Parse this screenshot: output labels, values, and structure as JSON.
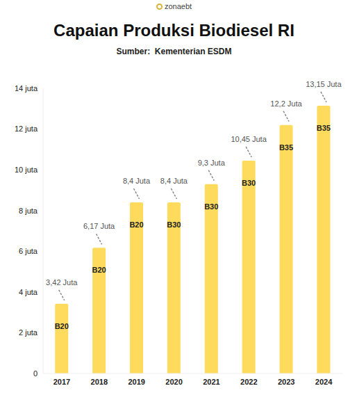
{
  "logo_text": "zonaebt",
  "chart_data": {
    "type": "bar",
    "title": "Capaian Produksi Biodiesel RI",
    "subtitle": "Sumber:  Kementerian ESDM",
    "categories": [
      "2017",
      "2018",
      "2019",
      "2020",
      "2021",
      "2022",
      "2023",
      "2024"
    ],
    "values": [
      3.42,
      6.17,
      8.4,
      8.4,
      9.3,
      10.45,
      12.2,
      13.15
    ],
    "value_labels": [
      "3,42 Juta",
      "6,17 Juta",
      "8,4 Juta",
      "8,4 Juta",
      "9,3 Juta",
      "10,45 Juta",
      "12,2 Juta",
      "13,15 Juta"
    ],
    "bar_labels": [
      "B20",
      "B20",
      "B20",
      "B30",
      "B30",
      "B30",
      "B35",
      "B35"
    ],
    "color": "#fedb5c",
    "ylim": [
      0,
      14
    ],
    "yticks": [
      0,
      {
        "value": 2,
        "label": "2 juta"
      },
      {
        "value": 4,
        "label": "4 juta"
      },
      {
        "value": 6,
        "label": "6 juta"
      },
      {
        "value": 8,
        "label": "8 juta"
      },
      {
        "value": 10,
        "label": "10 juta"
      },
      {
        "value": 12,
        "label": "12 juta"
      },
      {
        "value": 14,
        "label": "14 juta"
      }
    ],
    "grid": false,
    "data_labels": true
  }
}
